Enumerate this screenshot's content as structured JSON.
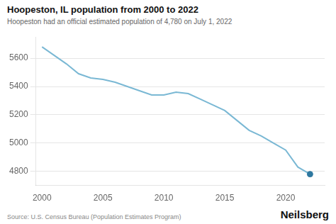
{
  "chart_data": {
    "type": "line",
    "title": "Hoopeston, IL population from 2000 to 2022",
    "subtitle": "Hoopeston had an official estimated population of 4,780 on July 1, 2022",
    "source": "Source: U.S. Census Bureau (Population Estimates Program)",
    "brand": "Neilsberg",
    "x": [
      2000,
      2001,
      2002,
      2003,
      2004,
      2005,
      2006,
      2007,
      2008,
      2009,
      2010,
      2011,
      2012,
      2013,
      2014,
      2015,
      2016,
      2017,
      2018,
      2019,
      2020,
      2021,
      2022
    ],
    "series": [
      {
        "color": "#7ab8d4",
        "values": [
          5680,
          5620,
          5560,
          5490,
          5460,
          5450,
          5430,
          5400,
          5370,
          5340,
          5340,
          5360,
          5350,
          5310,
          5270,
          5230,
          5160,
          5090,
          5050,
          5000,
          4950,
          4830,
          4780
        ]
      },
      {
        "type": "scatter",
        "color": "#2e78a0",
        "marker": "circle",
        "values": [
          null,
          null,
          null,
          null,
          null,
          null,
          null,
          null,
          null,
          null,
          null,
          null,
          null,
          null,
          null,
          null,
          null,
          null,
          null,
          null,
          null,
          null,
          4780
        ]
      }
    ],
    "xlim": [
      1999.5,
      2023.2
    ],
    "xticks": [
      2000,
      2005,
      2010,
      2015,
      2020
    ],
    "ylim": [
      4700,
      5750
    ],
    "yticks": [
      4800,
      5000,
      5200,
      5400,
      5600
    ],
    "grid": "y"
  }
}
